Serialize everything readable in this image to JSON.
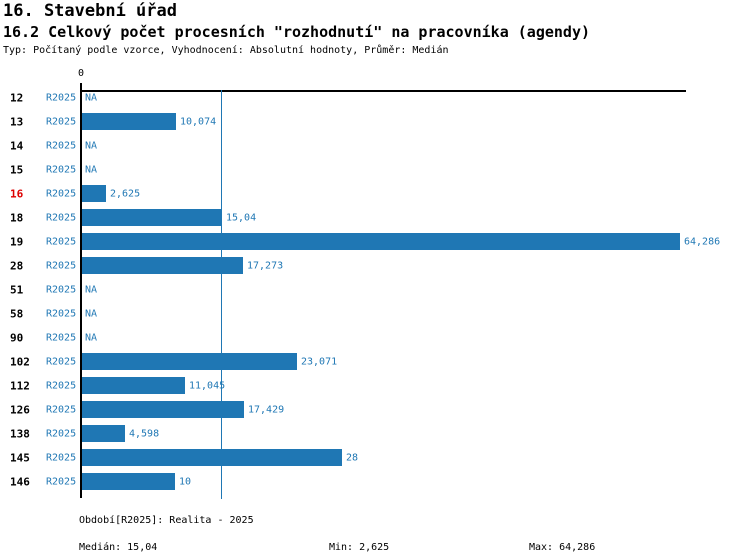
{
  "header": {
    "title": "16. Stavební úřad",
    "subtitle": "16.2 Celkový počet procesních \"rozhodnutí\" na pracovníka (agendy)",
    "meta": "Typ: Počítaný podle vzorce, Vyhodnocení: Absolutní hodnoty, Průměr: Medián"
  },
  "axis": {
    "zero_label": "0"
  },
  "chart_data": {
    "type": "bar",
    "orientation": "horizontal",
    "categories": [
      "12",
      "13",
      "14",
      "15",
      "16",
      "18",
      "19",
      "28",
      "51",
      "58",
      "90",
      "102",
      "112",
      "126",
      "138",
      "145",
      "146"
    ],
    "series": [
      {
        "name": "R2025",
        "values": [
          null,
          10.074,
          null,
          null,
          2.625,
          15.04,
          64.286,
          17.273,
          null,
          null,
          null,
          23.071,
          11.045,
          17.429,
          4.598,
          28,
          10
        ],
        "value_labels": [
          "NA",
          "10,074",
          "NA",
          "NA",
          "2,625",
          "15,04",
          "64,286",
          "17,273",
          "NA",
          "NA",
          "NA",
          "23,071",
          "11,045",
          "17,429",
          "4,598",
          "28",
          "10"
        ]
      }
    ],
    "period_label": "R2025",
    "na_text": "NA",
    "highlighted_category": "16",
    "median": 15.04,
    "min": 2.625,
    "max": 64.286,
    "xlim": [
      0,
      65
    ],
    "legend_position": "none",
    "grid": false
  },
  "footer": {
    "period_info": "Období[R2025]: Realita - 2025",
    "median_label": "Medián: 15,04",
    "min_label": "Min: 2,625",
    "max_label": "Max: 64,286"
  },
  "colors": {
    "bar": "#1f77b4",
    "text_blue": "#1f77b4",
    "median_line": "#1f77b4",
    "highlight_red": "#dd0000",
    "axis": "#000000"
  }
}
